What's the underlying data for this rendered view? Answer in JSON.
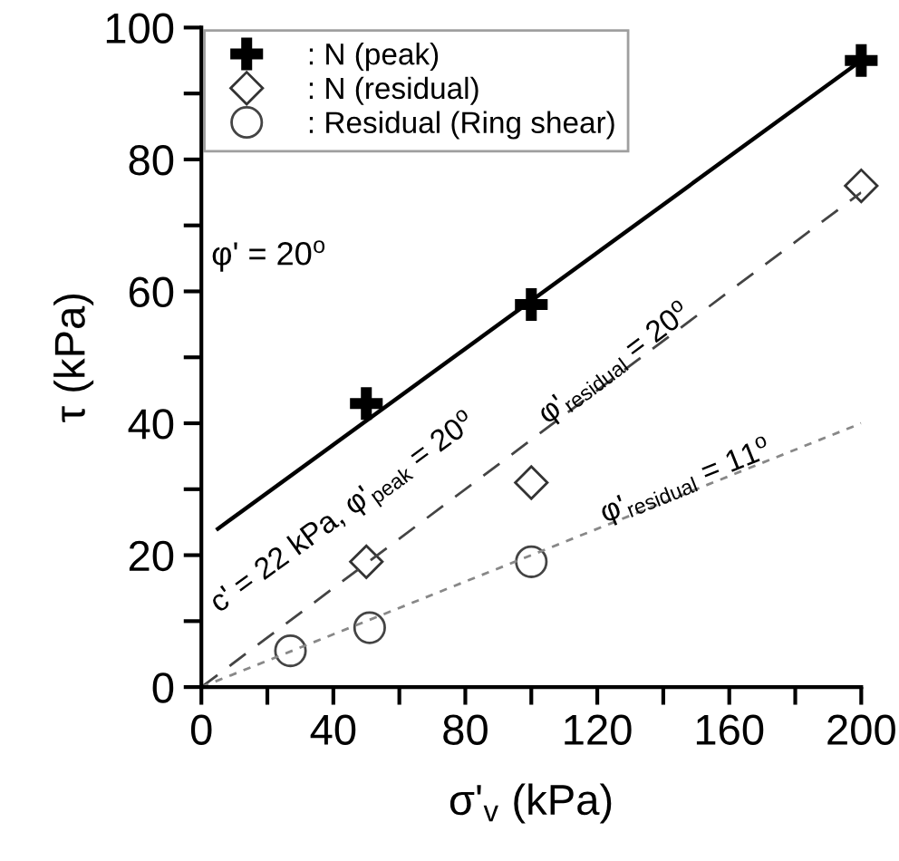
{
  "chart_data": {
    "type": "scatter",
    "xlabel": "σ'$_{v}$ (kPa)",
    "ylabel": "τ (kPa)",
    "xlim": [
      0,
      200
    ],
    "ylim": [
      0,
      100
    ],
    "xticks": [
      0,
      {
        "value": 20,
        "label": null
      },
      40,
      {
        "value": 60,
        "label": null
      },
      80,
      {
        "value": 100,
        "label": null
      },
      120,
      {
        "value": 140,
        "label": null
      },
      160,
      {
        "value": 180,
        "label": null
      },
      200
    ],
    "yticks": [
      0,
      {
        "value": 10,
        "label": null
      },
      20,
      {
        "value": 30,
        "label": null
      },
      40,
      {
        "value": 50,
        "label": null
      },
      60,
      {
        "value": 70,
        "label": null
      },
      80,
      {
        "value": 90,
        "label": null
      },
      100
    ],
    "grid": false,
    "legend": "top left",
    "series": [
      {
        "name": ": N (peak)",
        "marker": "cross",
        "color": "#000000",
        "x": [
          50,
          100,
          200
        ],
        "values": [
          43,
          58,
          95
        ]
      },
      {
        "name": ": N (residual)",
        "marker": "diamond",
        "color": "#333333",
        "x": [
          50,
          100,
          200
        ],
        "values": [
          19,
          31,
          76
        ]
      },
      {
        "name": ": Residual (Ring shear)",
        "marker": "circle",
        "color": "#444444",
        "x": [
          27,
          51,
          100
        ],
        "values": [
          5.5,
          9,
          19
        ]
      },
      {
        "type": "line",
        "marker": "none",
        "line_style": "solid",
        "color": "#000000",
        "x": [
          5,
          200
        ],
        "values": [
          24,
          95
        ]
      },
      {
        "type": "line",
        "marker": "none",
        "line_style": "dashed",
        "color": "#444444",
        "x": [
          0,
          200
        ],
        "values": [
          0,
          75
        ]
      },
      {
        "type": "line",
        "marker": "none",
        "line_style": "dotted",
        "color": "#888888",
        "x": [
          0,
          200
        ],
        "values": [
          0,
          40
        ]
      }
    ],
    "annotations": [
      "φ' = 20$^{o}$",
      "c' = 22 kPa, φ'$_{peak}$ = 20$^{o}$",
      "φ'$_{residual}$ = 20$^{o}$",
      "φ'$_{residual}$ = 11$^{o}$"
    ]
  }
}
